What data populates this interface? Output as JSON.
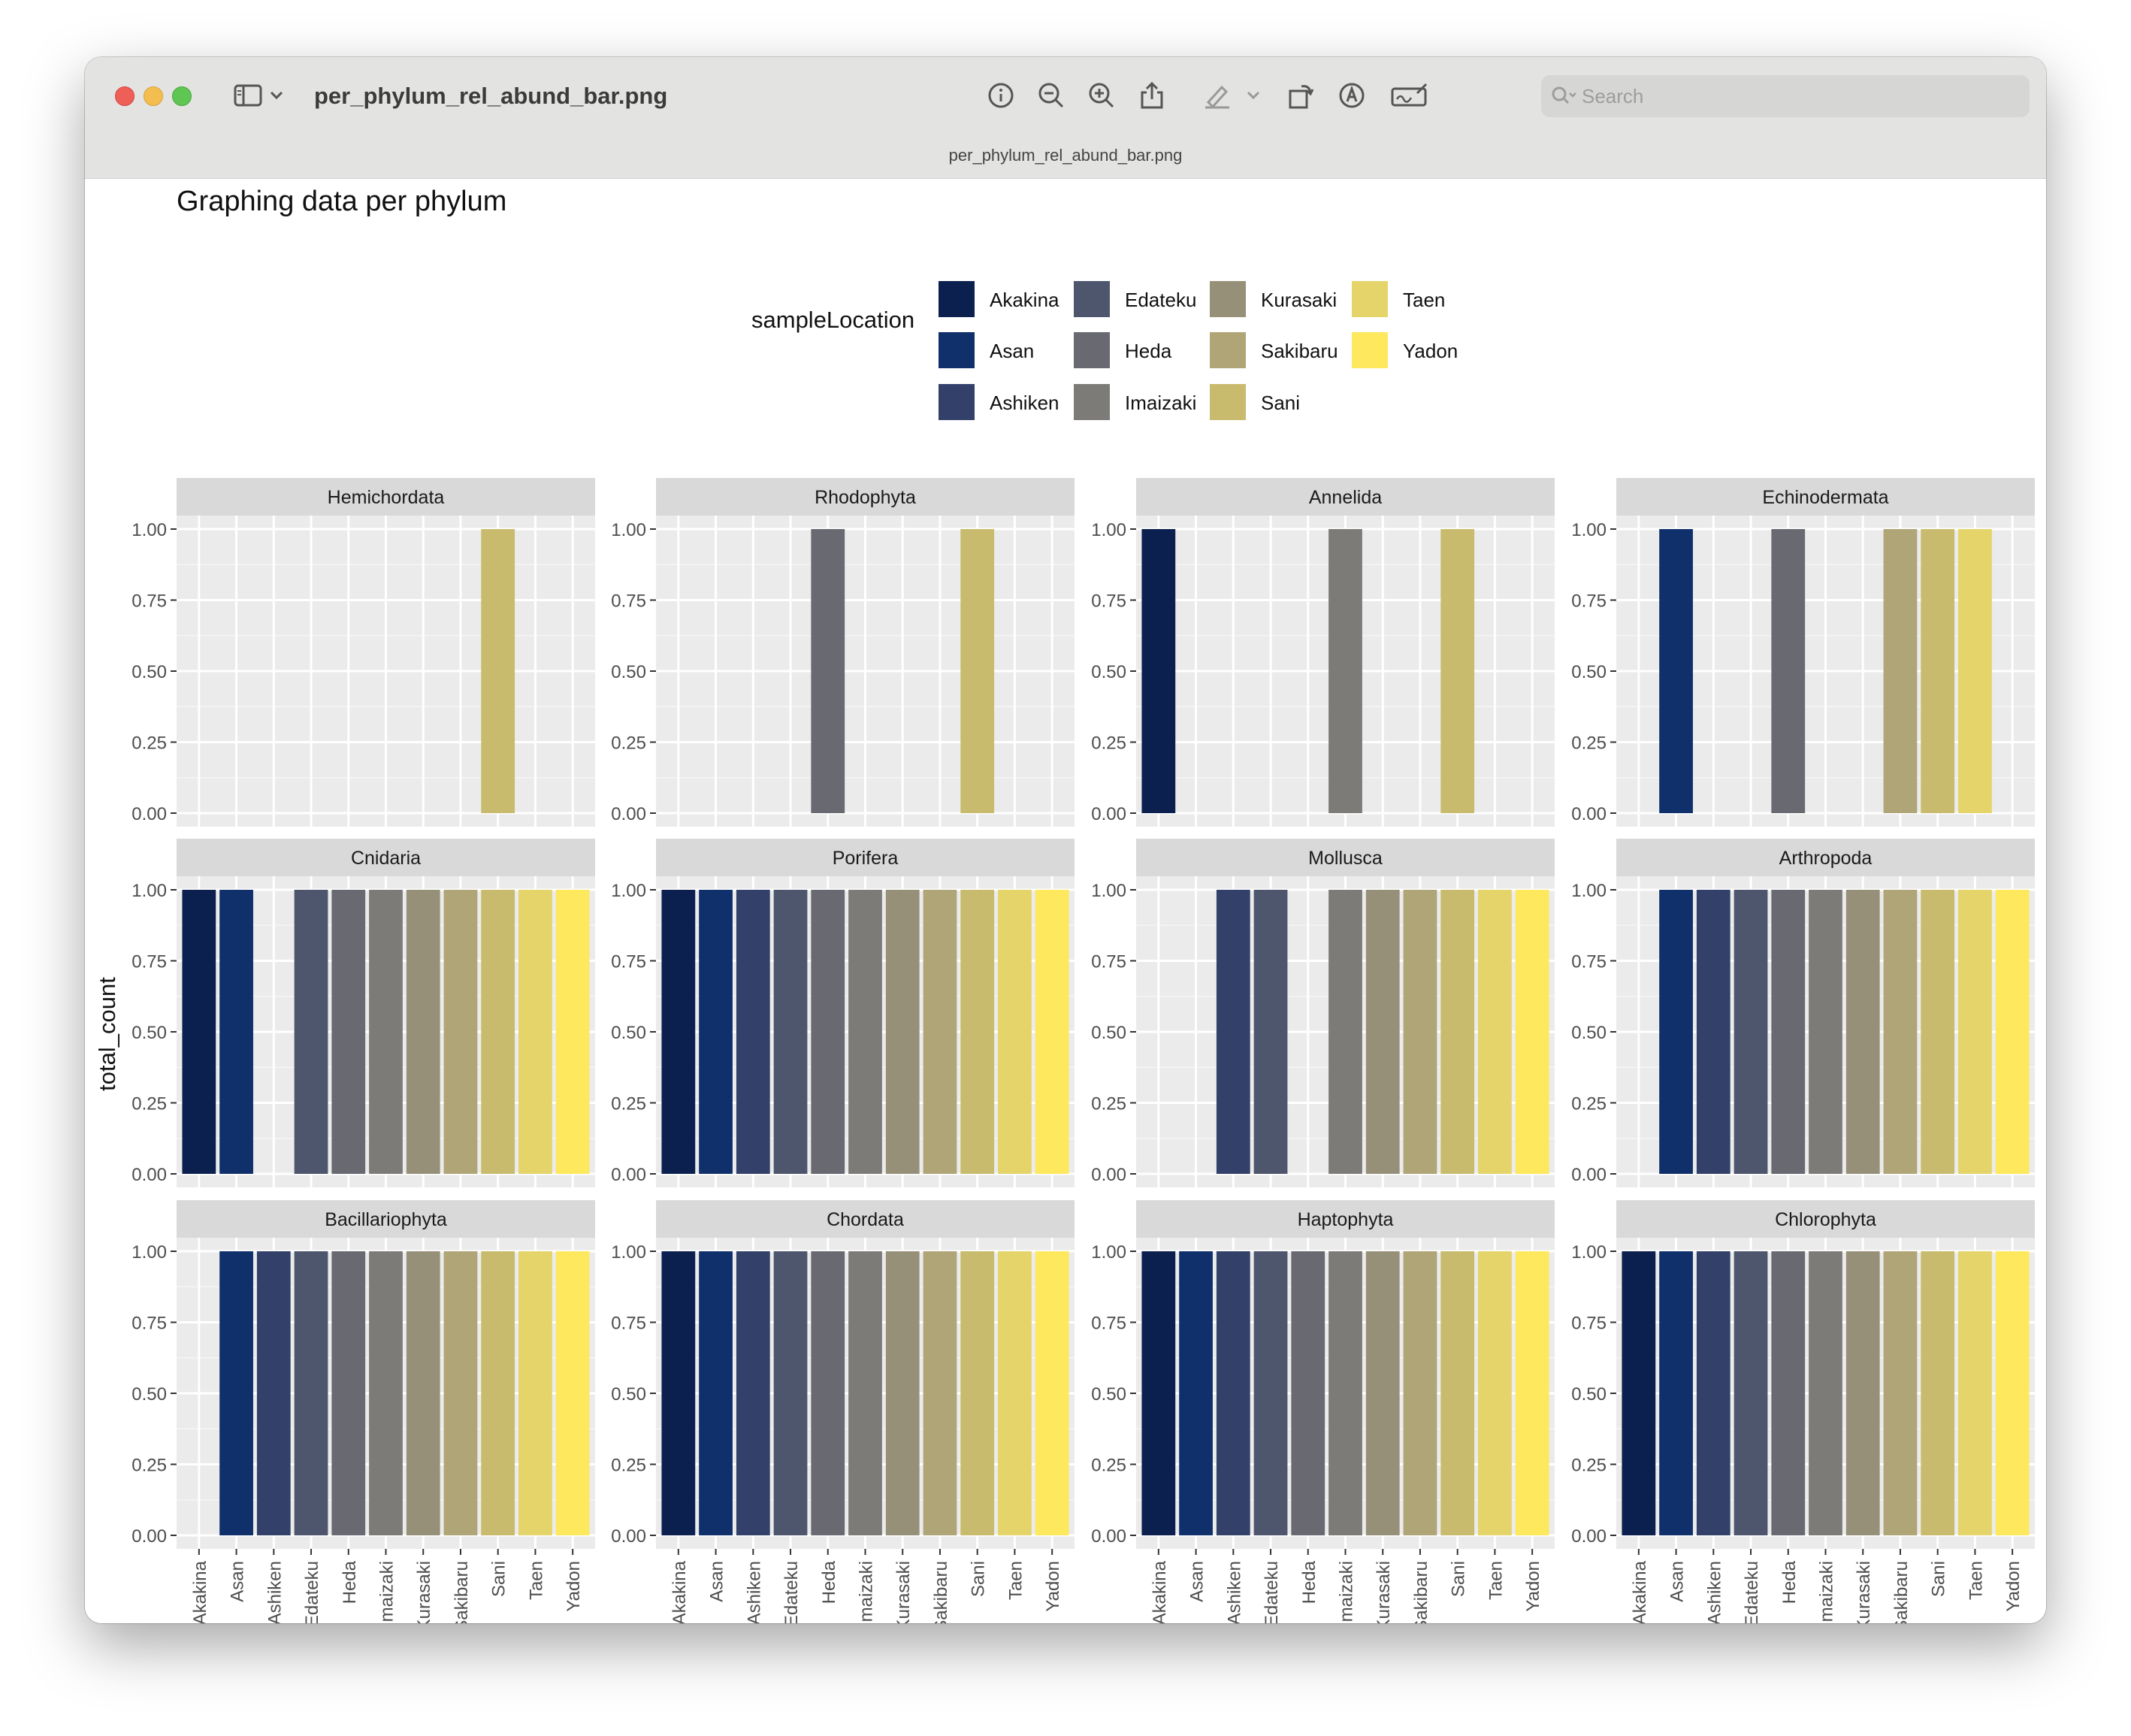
{
  "window": {
    "title": "per_phylum_rel_abund_bar.png",
    "subtitle": "per_phylum_rel_abund_bar.png",
    "search_placeholder": "Search"
  },
  "toolbar_icons": [
    "sidebar-icon",
    "chevron-down-icon",
    "info-icon",
    "zoom-out-icon",
    "zoom-in-icon",
    "share-icon",
    "highlight-icon",
    "chevron-down-icon",
    "rotate-icon",
    "markup-icon",
    "signature-icon"
  ],
  "chart_data": {
    "type": "bar",
    "title": "Graphing data per phylum",
    "ylabel": "total_count",
    "xlabel": "",
    "ylim": [
      0,
      1
    ],
    "yticks": [
      "0.00",
      "0.25",
      "0.50",
      "0.75",
      "1.00"
    ],
    "legend": {
      "title": "sampleLocation",
      "placement": "top",
      "entries": [
        "Akakina",
        "Asan",
        "Ashiken",
        "Edateku",
        "Heda",
        "Imaizaki",
        "Kurasaki",
        "Sakibaru",
        "Sani",
        "Taen",
        "Yadon"
      ],
      "colors": [
        "#0c2050",
        "#0f306b",
        "#33416a",
        "#4e566d",
        "#686971",
        "#7c7b78",
        "#979078",
        "#b0a577",
        "#c8bb6d",
        "#e4d46a",
        "#fde85e"
      ]
    },
    "categories": [
      "Akakina",
      "Asan",
      "Ashiken",
      "Edateku",
      "Heda",
      "Imaizaki",
      "Kurasaki",
      "Sakibaru",
      "Sani",
      "Taen",
      "Yadon"
    ],
    "panels": [
      {
        "name": "Hemichordata",
        "values": [
          0,
          0,
          0,
          0,
          0,
          0,
          0,
          0,
          1,
          0,
          0
        ]
      },
      {
        "name": "Rhodophyta",
        "values": [
          0,
          0,
          0,
          0,
          1,
          0,
          0,
          0,
          1,
          0,
          0
        ]
      },
      {
        "name": "Annelida",
        "values": [
          1,
          0,
          0,
          0,
          0,
          1,
          0,
          0,
          1,
          0,
          0
        ]
      },
      {
        "name": "Echinodermata",
        "values": [
          0,
          1,
          0,
          0,
          1,
          0,
          0,
          1,
          1,
          1,
          0
        ]
      },
      {
        "name": "Cnidaria",
        "values": [
          1,
          1,
          0,
          1,
          1,
          1,
          1,
          1,
          1,
          1,
          1
        ]
      },
      {
        "name": "Porifera",
        "values": [
          1,
          1,
          1,
          1,
          1,
          1,
          1,
          1,
          1,
          1,
          1
        ]
      },
      {
        "name": "Mollusca",
        "values": [
          0,
          0,
          1,
          1,
          0,
          1,
          1,
          1,
          1,
          1,
          1
        ]
      },
      {
        "name": "Arthropoda",
        "values": [
          0,
          1,
          1,
          1,
          1,
          1,
          1,
          1,
          1,
          1,
          1
        ]
      },
      {
        "name": "Bacillariophyta",
        "values": [
          0,
          1,
          1,
          1,
          1,
          1,
          1,
          1,
          1,
          1,
          1
        ]
      },
      {
        "name": "Chordata",
        "values": [
          1,
          1,
          1,
          1,
          1,
          1,
          1,
          1,
          1,
          1,
          1
        ]
      },
      {
        "name": "Haptophyta",
        "values": [
          1,
          1,
          1,
          1,
          1,
          1,
          1,
          1,
          1,
          1,
          1
        ]
      },
      {
        "name": "Chlorophyta",
        "values": [
          1,
          1,
          1,
          1,
          1,
          1,
          1,
          1,
          1,
          1,
          1
        ]
      }
    ]
  }
}
